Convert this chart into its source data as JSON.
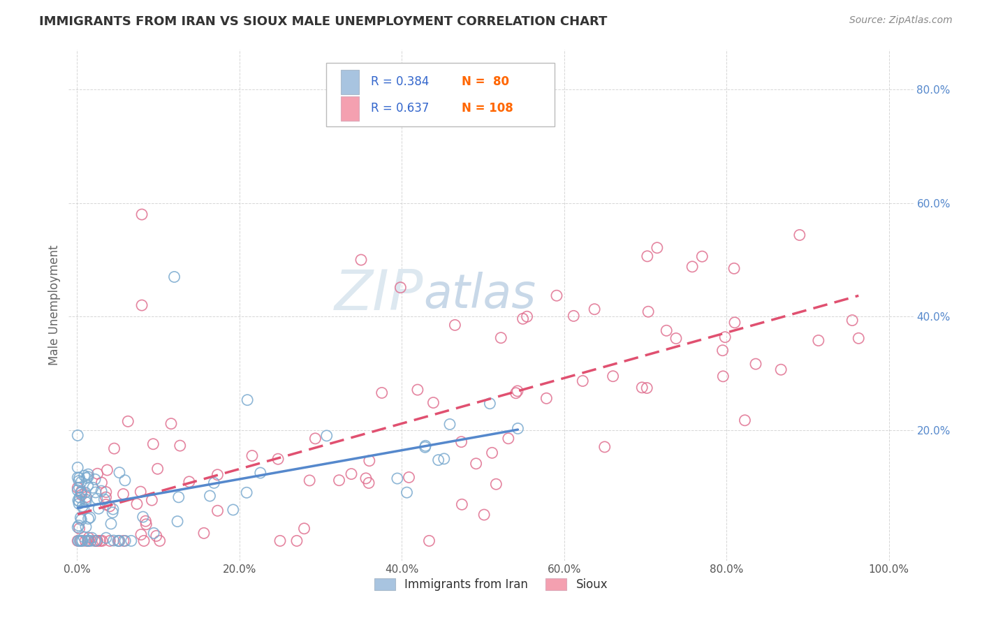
{
  "title": "IMMIGRANTS FROM IRAN VS SIOUX MALE UNEMPLOYMENT CORRELATION CHART",
  "source_text": "Source: ZipAtlas.com",
  "ylabel": "Male Unemployment",
  "x_tick_labels": [
    "0.0%",
    "20.0%",
    "40.0%",
    "60.0%",
    "80.0%",
    "100.0%"
  ],
  "x_tick_vals": [
    0.0,
    0.2,
    0.4,
    0.6,
    0.8,
    1.0
  ],
  "y_tick_labels": [
    "20.0%",
    "40.0%",
    "60.0%",
    "80.0%"
  ],
  "y_tick_vals": [
    0.2,
    0.4,
    0.6,
    0.8
  ],
  "legend_label_1": "Immigrants from Iran",
  "legend_label_2": "Sioux",
  "R1": "0.384",
  "N1": "80",
  "R2": "0.637",
  "N2": "108",
  "color_iran": "#a8c4e0",
  "color_iran_edge": "#7aaacf",
  "color_sioux": "#f4a0b0",
  "color_sioux_edge": "#e07090",
  "color_trendline_iran": "#5588cc",
  "color_trendline_sioux": "#e05070",
  "background_color": "#ffffff",
  "watermark_color": "#dde8f0",
  "title_color": "#333333",
  "axis_label_color": "#666666",
  "tick_color": "#5588cc",
  "grid_color": "#cccccc",
  "legend_text_color": "#3366cc"
}
